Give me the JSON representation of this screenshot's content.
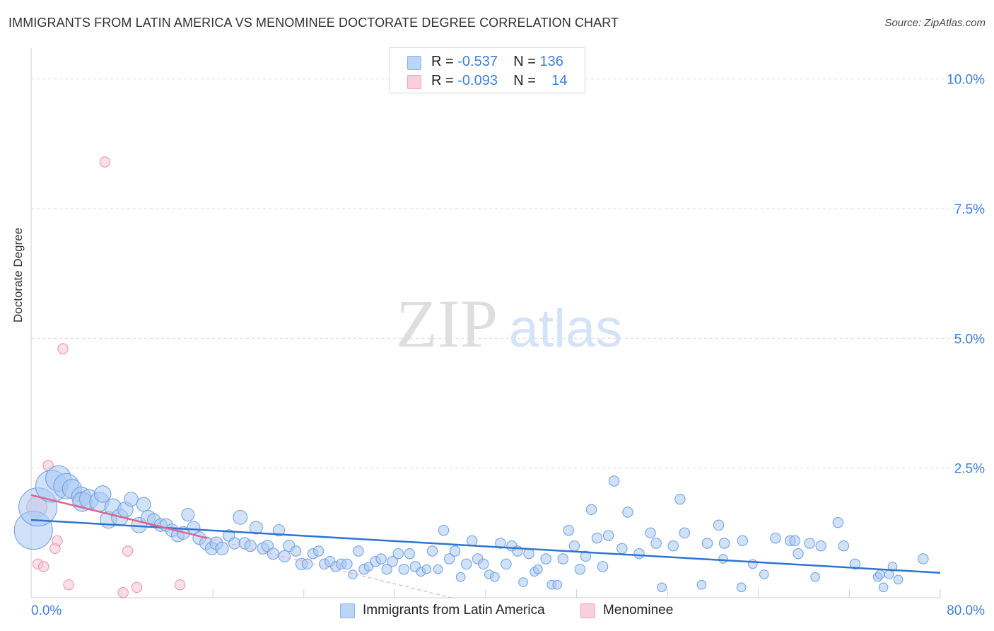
{
  "header": {
    "title": "IMMIGRANTS FROM LATIN AMERICA VS MENOMINEE DOCTORATE DEGREE CORRELATION CHART",
    "source": "Source: ZipAtlas.com"
  },
  "watermark": {
    "zip": "ZIP",
    "atlas": "atlas"
  },
  "legend": {
    "r_label": "R =",
    "n_label": "N =",
    "series": [
      {
        "name": "Immigrants from Latin America",
        "r": "-0.537",
        "n": "136",
        "color": "#8ab4ec"
      },
      {
        "name": "Menominee",
        "r": "-0.093",
        "n": "14",
        "color": "#f2a3bb"
      }
    ]
  },
  "colors": {
    "blue_fill": "#a9c8f2",
    "blue_stroke": "#6a9de0",
    "blue_line": "#2f74d0",
    "pink_fill": "#f7c4d3",
    "pink_stroke": "#ea8fac",
    "pink_line": "#e0648e",
    "tick_text": "#3f7fd8",
    "grid": "#dcdcdc"
  },
  "chart_data": {
    "type": "scatter",
    "title": "IMMIGRANTS FROM LATIN AMERICA VS MENOMINEE DOCTORATE DEGREE CORRELATION CHART",
    "xlabel": "",
    "ylabel": "Doctorate Degree",
    "xlim": [
      0,
      80
    ],
    "ylim": [
      0,
      10.5
    ],
    "x_tick_labels": [
      "0.0%",
      "80.0%"
    ],
    "y_ticks": [
      2.5,
      5.0,
      7.5,
      10.0
    ],
    "y_tick_labels": [
      "2.5%",
      "5.0%",
      "7.5%",
      "10.0%"
    ],
    "grid": true,
    "legend_position": "top-center",
    "series": [
      {
        "name": "Immigrants from Latin America",
        "r": -0.537,
        "n": 136,
        "trendline": {
          "x": [
            0,
            80
          ],
          "y": [
            1.5,
            0.48
          ]
        },
        "points": [
          [
            0.2,
            1.3,
            3
          ],
          [
            0.6,
            1.75,
            3
          ],
          [
            1.8,
            2.15,
            2.5
          ],
          [
            2.4,
            2.3,
            2
          ],
          [
            3.1,
            2.15,
            2
          ],
          [
            3.6,
            2.1,
            1.5
          ],
          [
            4.4,
            1.95,
            1.5
          ],
          [
            4.5,
            1.85,
            1.5
          ],
          [
            5.1,
            1.9,
            1.5
          ],
          [
            6.0,
            1.85,
            1.5
          ],
          [
            6.3,
            2.0,
            1.3
          ],
          [
            6.8,
            1.5,
            1.3
          ],
          [
            7.2,
            1.75,
            1.3
          ],
          [
            7.8,
            1.55,
            1.3
          ],
          [
            8.3,
            1.7,
            1.2
          ],
          [
            8.8,
            1.9,
            1.1
          ],
          [
            9.5,
            1.4,
            1.2
          ],
          [
            9.9,
            1.8,
            1.1
          ],
          [
            10.3,
            1.55,
            1.1
          ],
          [
            10.8,
            1.5,
            1.0
          ],
          [
            11.4,
            1.4,
            1.0
          ],
          [
            11.9,
            1.4,
            1.0
          ],
          [
            12.4,
            1.3,
            1.0
          ],
          [
            12.9,
            1.2,
            1.0
          ],
          [
            13.4,
            1.25,
            1.0
          ],
          [
            13.8,
            1.6,
            1.0
          ],
          [
            14.3,
            1.35,
            1.0
          ],
          [
            14.8,
            1.15,
            1.0
          ],
          [
            15.4,
            1.05,
            1.0
          ],
          [
            15.9,
            0.95,
            1.0
          ],
          [
            16.3,
            1.05,
            1.0
          ],
          [
            16.8,
            0.95,
            1.0
          ],
          [
            17.4,
            1.2,
            0.9
          ],
          [
            17.9,
            1.05,
            0.9
          ],
          [
            18.4,
            1.55,
            1.1
          ],
          [
            18.8,
            1.05,
            0.9
          ],
          [
            19.3,
            1.0,
            0.9
          ],
          [
            19.8,
            1.35,
            1.0
          ],
          [
            20.4,
            0.95,
            0.9
          ],
          [
            20.8,
            1.0,
            0.9
          ],
          [
            21.3,
            0.85,
            0.9
          ],
          [
            21.8,
            1.3,
            0.9
          ],
          [
            22.3,
            0.8,
            0.9
          ],
          [
            22.7,
            1.0,
            0.9
          ],
          [
            23.3,
            0.9,
            0.8
          ],
          [
            23.8,
            0.65,
            0.9
          ],
          [
            24.3,
            0.65,
            0.8
          ],
          [
            24.8,
            0.85,
            0.8
          ],
          [
            25.3,
            0.9,
            0.8
          ],
          [
            25.8,
            0.65,
            0.8
          ],
          [
            26.3,
            0.7,
            0.8
          ],
          [
            26.8,
            0.6,
            0.8
          ],
          [
            27.3,
            0.65,
            0.8
          ],
          [
            27.8,
            0.65,
            0.8
          ],
          [
            28.3,
            0.45,
            0.7
          ],
          [
            28.8,
            0.9,
            0.8
          ],
          [
            29.3,
            0.55,
            0.8
          ],
          [
            29.7,
            0.6,
            0.7
          ],
          [
            30.3,
            0.7,
            0.8
          ],
          [
            30.8,
            0.75,
            0.8
          ],
          [
            31.3,
            0.55,
            0.8
          ],
          [
            31.8,
            0.7,
            0.8
          ],
          [
            32.3,
            0.85,
            0.8
          ],
          [
            32.8,
            0.55,
            0.8
          ],
          [
            33.3,
            0.85,
            0.8
          ],
          [
            33.8,
            0.6,
            0.8
          ],
          [
            34.3,
            0.5,
            0.7
          ],
          [
            34.8,
            0.55,
            0.7
          ],
          [
            35.3,
            0.9,
            0.8
          ],
          [
            35.8,
            0.55,
            0.7
          ],
          [
            36.3,
            1.3,
            0.8
          ],
          [
            36.8,
            0.75,
            0.8
          ],
          [
            37.3,
            0.9,
            0.8
          ],
          [
            37.8,
            0.4,
            0.7
          ],
          [
            38.3,
            0.65,
            0.8
          ],
          [
            38.8,
            1.1,
            0.8
          ],
          [
            39.3,
            0.75,
            0.8
          ],
          [
            39.8,
            0.65,
            0.8
          ],
          [
            40.3,
            0.45,
            0.7
          ],
          [
            40.8,
            0.4,
            0.7
          ],
          [
            41.3,
            1.05,
            0.8
          ],
          [
            41.8,
            0.65,
            0.8
          ],
          [
            42.3,
            1.0,
            0.8
          ],
          [
            42.8,
            0.9,
            0.8
          ],
          [
            43.3,
            0.3,
            0.7
          ],
          [
            43.8,
            0.85,
            0.8
          ],
          [
            44.3,
            0.5,
            0.7
          ],
          [
            44.6,
            0.55,
            0.7
          ],
          [
            45.3,
            0.75,
            0.8
          ],
          [
            45.8,
            0.25,
            0.7
          ],
          [
            46.3,
            0.25,
            0.7
          ],
          [
            46.8,
            0.75,
            0.8
          ],
          [
            47.3,
            1.3,
            0.8
          ],
          [
            47.8,
            1.0,
            0.8
          ],
          [
            48.3,
            0.55,
            0.8
          ],
          [
            48.8,
            0.8,
            0.8
          ],
          [
            49.3,
            1.7,
            0.8
          ],
          [
            49.8,
            1.15,
            0.8
          ],
          [
            50.3,
            0.6,
            0.8
          ],
          [
            50.8,
            1.2,
            0.8
          ],
          [
            51.3,
            2.25,
            0.8
          ],
          [
            52.0,
            0.95,
            0.8
          ],
          [
            52.5,
            1.65,
            0.8
          ],
          [
            53.5,
            0.85,
            0.8
          ],
          [
            54.5,
            1.25,
            0.8
          ],
          [
            55.0,
            1.05,
            0.8
          ],
          [
            55.5,
            0.2,
            0.7
          ],
          [
            56.5,
            1.0,
            0.8
          ],
          [
            57.1,
            1.9,
            0.8
          ],
          [
            57.5,
            1.25,
            0.8
          ],
          [
            59.0,
            0.25,
            0.7
          ],
          [
            59.5,
            1.05,
            0.8
          ],
          [
            60.5,
            1.4,
            0.8
          ],
          [
            60.9,
            0.75,
            0.7
          ],
          [
            61.0,
            1.05,
            0.8
          ],
          [
            62.5,
            0.2,
            0.7
          ],
          [
            62.6,
            1.1,
            0.8
          ],
          [
            63.5,
            0.65,
            0.7
          ],
          [
            64.5,
            0.45,
            0.7
          ],
          [
            65.5,
            1.15,
            0.8
          ],
          [
            66.8,
            1.1,
            0.8
          ],
          [
            67.2,
            1.1,
            0.8
          ],
          [
            67.5,
            0.85,
            0.8
          ],
          [
            68.5,
            1.05,
            0.8
          ],
          [
            69.0,
            0.4,
            0.7
          ],
          [
            69.5,
            1.0,
            0.8
          ],
          [
            71.0,
            1.45,
            0.8
          ],
          [
            71.5,
            1.0,
            0.8
          ],
          [
            72.5,
            0.65,
            0.8
          ],
          [
            74.5,
            0.4,
            0.7
          ],
          [
            74.7,
            0.45,
            0.7
          ],
          [
            75.0,
            0.2,
            0.7
          ],
          [
            75.5,
            0.45,
            0.7
          ],
          [
            75.8,
            0.6,
            0.7
          ],
          [
            76.3,
            0.35,
            0.7
          ],
          [
            78.5,
            0.75,
            0.8
          ]
        ]
      },
      {
        "name": "Menominee",
        "r": -0.093,
        "n": 14,
        "trendline": {
          "x": [
            0,
            15.5
          ],
          "y": [
            1.98,
            1.15
          ],
          "dashed_extension": {
            "x": [
              15.5,
              37.0
            ],
            "y": [
              1.15,
              0.0
            ]
          }
        },
        "points": [
          [
            0.5,
            1.75,
            1.6
          ],
          [
            0.6,
            0.65,
            0.8
          ],
          [
            1.1,
            0.6,
            0.8
          ],
          [
            1.5,
            2.55,
            0.8
          ],
          [
            2.1,
            0.95,
            0.8
          ],
          [
            2.3,
            1.1,
            0.8
          ],
          [
            2.8,
            4.8,
            0.8
          ],
          [
            3.3,
            0.25,
            0.8
          ],
          [
            4.3,
            1.95,
            0.8
          ],
          [
            6.5,
            8.4,
            0.8
          ],
          [
            8.1,
            0.1,
            0.8
          ],
          [
            8.5,
            0.9,
            0.8
          ],
          [
            9.3,
            0.2,
            0.8
          ],
          [
            13.1,
            0.25,
            0.8
          ]
        ]
      }
    ]
  }
}
